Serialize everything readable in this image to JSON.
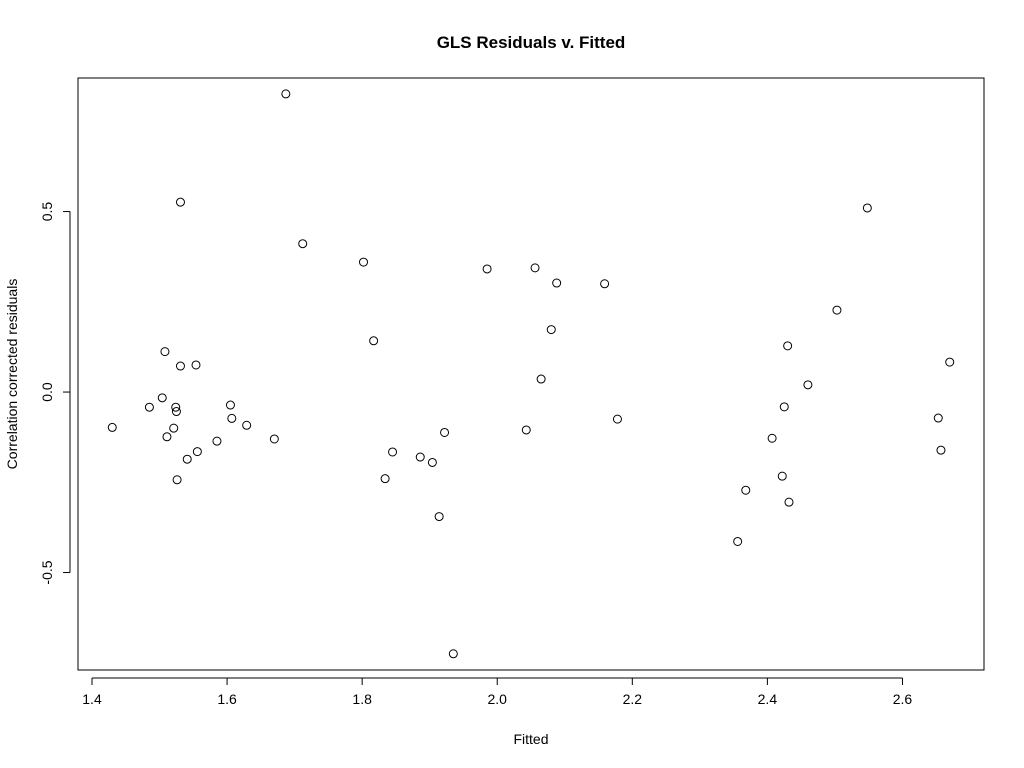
{
  "chart_data": {
    "type": "scatter",
    "title": "GLS Residuals v. Fitted",
    "xlabel": "Fitted",
    "ylabel": "Correlation corrected residuals",
    "xlim": [
      1.4,
      2.7
    ],
    "ylim": [
      -0.77,
      0.87
    ],
    "x_ticks": [
      1.4,
      1.6,
      1.8,
      2.0,
      2.2,
      2.4,
      2.6
    ],
    "x_tick_labels": [
      "1.4",
      "1.6",
      "1.8",
      "2.0",
      "2.2",
      "2.4",
      "2.6"
    ],
    "y_ticks": [
      -0.5,
      0.0,
      0.5
    ],
    "y_tick_labels": [
      "-0.5",
      "0.0",
      "0.5"
    ],
    "grid": false,
    "legend": "none",
    "points": [
      {
        "x": 1.43,
        "y": -0.098
      },
      {
        "x": 1.485,
        "y": -0.042
      },
      {
        "x": 1.504,
        "y": -0.016
      },
      {
        "x": 1.508,
        "y": 0.112
      },
      {
        "x": 1.511,
        "y": -0.124
      },
      {
        "x": 1.521,
        "y": -0.1
      },
      {
        "x": 1.524,
        "y": -0.042
      },
      {
        "x": 1.525,
        "y": -0.054
      },
      {
        "x": 1.526,
        "y": -0.243
      },
      {
        "x": 1.531,
        "y": 0.526
      },
      {
        "x": 1.531,
        "y": 0.072
      },
      {
        "x": 1.541,
        "y": -0.186
      },
      {
        "x": 1.554,
        "y": 0.075
      },
      {
        "x": 1.556,
        "y": -0.165
      },
      {
        "x": 1.585,
        "y": -0.136
      },
      {
        "x": 1.605,
        "y": -0.036
      },
      {
        "x": 1.607,
        "y": -0.073
      },
      {
        "x": 1.629,
        "y": -0.092
      },
      {
        "x": 1.67,
        "y": -0.13
      },
      {
        "x": 1.687,
        "y": 0.826
      },
      {
        "x": 1.712,
        "y": 0.411
      },
      {
        "x": 1.802,
        "y": 0.36
      },
      {
        "x": 1.817,
        "y": 0.142
      },
      {
        "x": 1.834,
        "y": -0.24
      },
      {
        "x": 1.845,
        "y": -0.166
      },
      {
        "x": 1.886,
        "y": -0.18
      },
      {
        "x": 1.904,
        "y": -0.195
      },
      {
        "x": 1.914,
        "y": -0.345
      },
      {
        "x": 1.922,
        "y": -0.112
      },
      {
        "x": 1.935,
        "y": -0.725
      },
      {
        "x": 1.985,
        "y": 0.341
      },
      {
        "x": 2.043,
        "y": -0.105
      },
      {
        "x": 2.056,
        "y": 0.344
      },
      {
        "x": 2.065,
        "y": 0.036
      },
      {
        "x": 2.08,
        "y": 0.173
      },
      {
        "x": 2.088,
        "y": 0.302
      },
      {
        "x": 2.159,
        "y": 0.3
      },
      {
        "x": 2.178,
        "y": -0.075
      },
      {
        "x": 2.356,
        "y": -0.414
      },
      {
        "x": 2.368,
        "y": -0.272
      },
      {
        "x": 2.407,
        "y": -0.128
      },
      {
        "x": 2.422,
        "y": -0.233
      },
      {
        "x": 2.425,
        "y": -0.041
      },
      {
        "x": 2.43,
        "y": 0.128
      },
      {
        "x": 2.432,
        "y": -0.305
      },
      {
        "x": 2.46,
        "y": 0.02
      },
      {
        "x": 2.503,
        "y": 0.227
      },
      {
        "x": 2.548,
        "y": 0.51
      },
      {
        "x": 2.653,
        "y": -0.072
      },
      {
        "x": 2.657,
        "y": -0.161
      },
      {
        "x": 2.67,
        "y": 0.083
      }
    ]
  }
}
